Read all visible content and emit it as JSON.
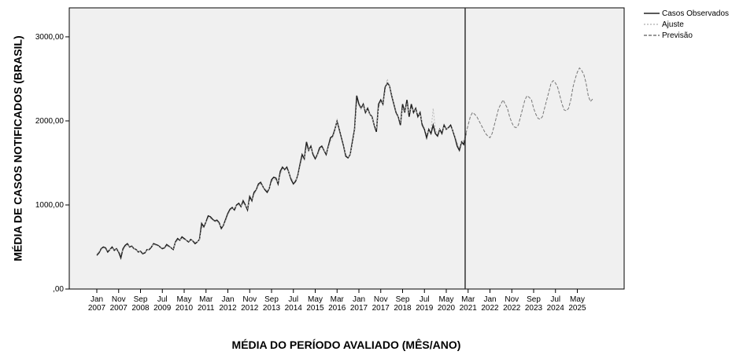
{
  "chart_data": {
    "type": "line",
    "y_label": "MÉDIA DE CASOS NOTIFICADOS (BRASIL)",
    "x_label": "MÉDIA DO PERÍODO AVALIADO (MÊS/ANO)",
    "ylim": [
      0,
      3345
    ],
    "yticks": [
      {
        "value": 0,
        "label": ",00"
      },
      {
        "value": 1000,
        "label": "1000,00"
      },
      {
        "value": 2000,
        "label": "2000,00"
      },
      {
        "value": 3000,
        "label": "3000,00"
      }
    ],
    "legend": "top-right",
    "categories": [
      "Jan 2007",
      null,
      null,
      null,
      null,
      null,
      null,
      null,
      null,
      null,
      "Nov 2007",
      null,
      null,
      null,
      null,
      null,
      null,
      null,
      null,
      null,
      "Sep 2008",
      null,
      null,
      null,
      null,
      null,
      null,
      null,
      null,
      null,
      "Jul 2009",
      null,
      null,
      null,
      null,
      null,
      null,
      null,
      null,
      null,
      "May 2010",
      null,
      null,
      null,
      null,
      null,
      null,
      null,
      null,
      null,
      "Mar 2011",
      null,
      null,
      null,
      null,
      null,
      null,
      null,
      null,
      null,
      "Jan 2012",
      null,
      null,
      null,
      null,
      null,
      null,
      null,
      null,
      null,
      "Nov 2012",
      null,
      null,
      null,
      null,
      null,
      null,
      null,
      null,
      null,
      "Sep 2013",
      null,
      null,
      null,
      null,
      null,
      null,
      null,
      null,
      null,
      "Jul 2014",
      null,
      null,
      null,
      null,
      null,
      null,
      null,
      null,
      null,
      "May 2015",
      null,
      null,
      null,
      null,
      null,
      null,
      null,
      null,
      null,
      "Mar 2016",
      null,
      null,
      null,
      null,
      null,
      null,
      null,
      null,
      null,
      "Jan 2017",
      null,
      null,
      null,
      null,
      null,
      null,
      null,
      null,
      null,
      "Nov 2017",
      null,
      null,
      null,
      null,
      null,
      null,
      null,
      null,
      null,
      "Sep 2018",
      null,
      null,
      null,
      null,
      null,
      null,
      null,
      null,
      null,
      "Jul 2019",
      null,
      null,
      null,
      null,
      null,
      null,
      null,
      null,
      null,
      "May 2020",
      null,
      null,
      null,
      null,
      null,
      null,
      null,
      null,
      null,
      "Mar 2021",
      null,
      null,
      null,
      null,
      null,
      null,
      null,
      null,
      null,
      "Jan 2022",
      null,
      null,
      null,
      null,
      null,
      null,
      null,
      null,
      null,
      "Nov 2022",
      null,
      null,
      null,
      null,
      null,
      null,
      null,
      null,
      null,
      "Sep 2023",
      null,
      null,
      null,
      null,
      null,
      null,
      null,
      null,
      null,
      "Jul 2024",
      null,
      null,
      null,
      null,
      null,
      null,
      null,
      null,
      null,
      "May 2025",
      null,
      null,
      null,
      null,
      null,
      null,
      null
    ],
    "series": [
      {
        "name": "Casos Observados",
        "color": "#222222",
        "dash": "solid",
        "values": [
          400,
          430,
          480,
          500,
          490,
          440,
          470,
          500,
          460,
          480,
          440,
          370,
          480,
          520,
          540,
          500,
          510,
          480,
          470,
          440,
          450,
          420,
          430,
          470,
          470,
          500,
          540,
          530,
          520,
          500,
          480,
          490,
          530,
          510,
          490,
          470,
          560,
          600,
          580,
          620,
          600,
          580,
          560,
          590,
          570,
          540,
          560,
          590,
          780,
          740,
          800,
          870,
          860,
          830,
          810,
          820,
          790,
          720,
          760,
          830,
          900,
          950,
          970,
          940,
          1000,
          1020,
          980,
          1050,
          1000,
          940,
          1100,
          1050,
          1150,
          1180,
          1250,
          1270,
          1220,
          1180,
          1150,
          1200,
          1300,
          1330,
          1320,
          1250,
          1400,
          1450,
          1420,
          1450,
          1380,
          1300,
          1250,
          1280,
          1350,
          1480,
          1600,
          1550,
          1750,
          1650,
          1700,
          1600,
          1550,
          1600,
          1680,
          1700,
          1650,
          1600,
          1700,
          1800,
          1820,
          1900,
          2000,
          1900,
          1800,
          1700,
          1580,
          1560,
          1600,
          1750,
          1900,
          2300,
          2200,
          2150,
          2200,
          2100,
          2150,
          2080,
          2050,
          1950,
          1870,
          2200,
          2250,
          2200,
          2400,
          2450,
          2420,
          2300,
          2200,
          2100,
          2050,
          1950,
          2200,
          2100,
          2250,
          2050,
          2200,
          2100,
          2150,
          2050,
          2100,
          1950,
          1900,
          1800,
          1900,
          1850,
          1950,
          1850,
          1820,
          1900,
          1850,
          1950,
          1900,
          1920,
          1950,
          1880,
          1800,
          1700,
          1650,
          1750,
          1720,
          1850,
          null,
          null,
          null,
          null,
          null,
          null,
          null,
          null,
          null,
          null,
          null,
          null,
          null,
          null,
          null,
          null,
          null,
          null,
          null,
          null,
          null,
          null,
          null,
          null,
          null,
          null,
          null,
          null,
          null,
          null,
          null,
          null,
          null,
          null,
          null,
          null,
          null,
          null,
          null,
          null,
          null,
          null,
          null,
          null,
          null,
          null,
          null,
          null,
          null,
          null,
          null,
          null,
          null,
          null,
          null,
          null,
          null,
          null
        ]
      },
      {
        "name": "Ajuste",
        "color": "#bbbbbb",
        "dash": "dotted",
        "values": [
          420,
          450,
          470,
          490,
          480,
          460,
          470,
          480,
          470,
          470,
          450,
          420,
          460,
          500,
          520,
          510,
          500,
          480,
          460,
          450,
          440,
          430,
          440,
          460,
          480,
          510,
          530,
          520,
          510,
          500,
          490,
          500,
          510,
          500,
          490,
          480,
          550,
          580,
          590,
          600,
          590,
          580,
          570,
          580,
          570,
          560,
          560,
          580,
          720,
          760,
          800,
          840,
          840,
          820,
          800,
          800,
          780,
          740,
          760,
          810,
          880,
          930,
          960,
          960,
          990,
          1000,
          990,
          1020,
          1000,
          960,
          1060,
          1060,
          1120,
          1170,
          1230,
          1250,
          1220,
          1190,
          1170,
          1200,
          1270,
          1310,
          1300,
          1270,
          1360,
          1420,
          1430,
          1430,
          1380,
          1320,
          1280,
          1290,
          1340,
          1450,
          1560,
          1560,
          1680,
          1660,
          1680,
          1620,
          1570,
          1590,
          1650,
          1680,
          1650,
          1620,
          1680,
          1760,
          1800,
          1880,
          2020,
          1920,
          1820,
          1720,
          1600,
          1570,
          1600,
          1720,
          1880,
          2200,
          2180,
          2150,
          2180,
          2120,
          2130,
          2080,
          2040,
          1960,
          1900,
          2150,
          2230,
          2220,
          2350,
          2500,
          2420,
          2320,
          2220,
          2120,
          2060,
          1980,
          2150,
          2120,
          2200,
          2100,
          2150,
          2120,
          2130,
          2080,
          2080,
          1980,
          1920,
          1840,
          1880,
          1880,
          2150,
          1900,
          1850,
          1900,
          1880,
          1930,
          1900,
          1920,
          1930,
          1890,
          1820,
          1740,
          1680,
          1760,
          1760,
          1830,
          null,
          null,
          null,
          null,
          null,
          null,
          null,
          null,
          null,
          null,
          null,
          null,
          null,
          null,
          null,
          null,
          null,
          null,
          null,
          null,
          null,
          null,
          null,
          null,
          null,
          null,
          null,
          null,
          null,
          null,
          null,
          null,
          null,
          null,
          null,
          null,
          null,
          null,
          null,
          null,
          null,
          null,
          null,
          null,
          null,
          null,
          null,
          null,
          null,
          null,
          null,
          null,
          null,
          null,
          null,
          null,
          null,
          null
        ]
      },
      {
        "name": "Previsão",
        "color": "#777777",
        "dash": "dashed",
        "values": [
          null,
          null,
          null,
          null,
          null,
          null,
          null,
          null,
          null,
          null,
          null,
          null,
          null,
          null,
          null,
          null,
          null,
          null,
          null,
          null,
          null,
          null,
          null,
          null,
          null,
          null,
          null,
          null,
          null,
          null,
          null,
          null,
          null,
          null,
          null,
          null,
          null,
          null,
          null,
          null,
          null,
          null,
          null,
          null,
          null,
          null,
          null,
          null,
          null,
          null,
          null,
          null,
          null,
          null,
          null,
          null,
          null,
          null,
          null,
          null,
          null,
          null,
          null,
          null,
          null,
          null,
          null,
          null,
          null,
          null,
          null,
          null,
          null,
          null,
          null,
          null,
          null,
          null,
          null,
          null,
          null,
          null,
          null,
          null,
          null,
          null,
          null,
          null,
          null,
          null,
          null,
          null,
          null,
          null,
          null,
          null,
          null,
          null,
          null,
          null,
          null,
          null,
          null,
          null,
          null,
          null,
          null,
          null,
          null,
          null,
          null,
          null,
          null,
          null,
          null,
          null,
          null,
          null,
          null,
          null,
          null,
          null,
          null,
          null,
          null,
          null,
          null,
          null,
          null,
          null,
          null,
          null,
          null,
          null,
          null,
          null,
          null,
          null,
          null,
          null,
          null,
          null,
          null,
          null,
          null,
          null,
          null,
          null,
          null,
          null,
          null,
          null,
          null,
          null,
          null,
          null,
          null,
          null,
          null,
          null,
          null,
          null,
          null,
          null,
          null,
          null,
          null,
          null,
          null,
          1850,
          1950,
          2050,
          2100,
          2080,
          2050,
          2000,
          1950,
          1900,
          1850,
          1820,
          1800,
          1850,
          1950,
          2050,
          2150,
          2200,
          2250,
          2200,
          2150,
          2050,
          1980,
          1930,
          1920,
          1950,
          2050,
          2150,
          2250,
          2300,
          2280,
          2250,
          2150,
          2080,
          2030,
          2020,
          2050,
          2150,
          2250,
          2350,
          2450,
          2480,
          2450,
          2400,
          2300,
          2200,
          2130,
          2120,
          2150,
          2250,
          2400,
          2500,
          2580,
          2630,
          2600,
          2550,
          2450,
          2300,
          2230,
          2260
        ]
      }
    ]
  }
}
